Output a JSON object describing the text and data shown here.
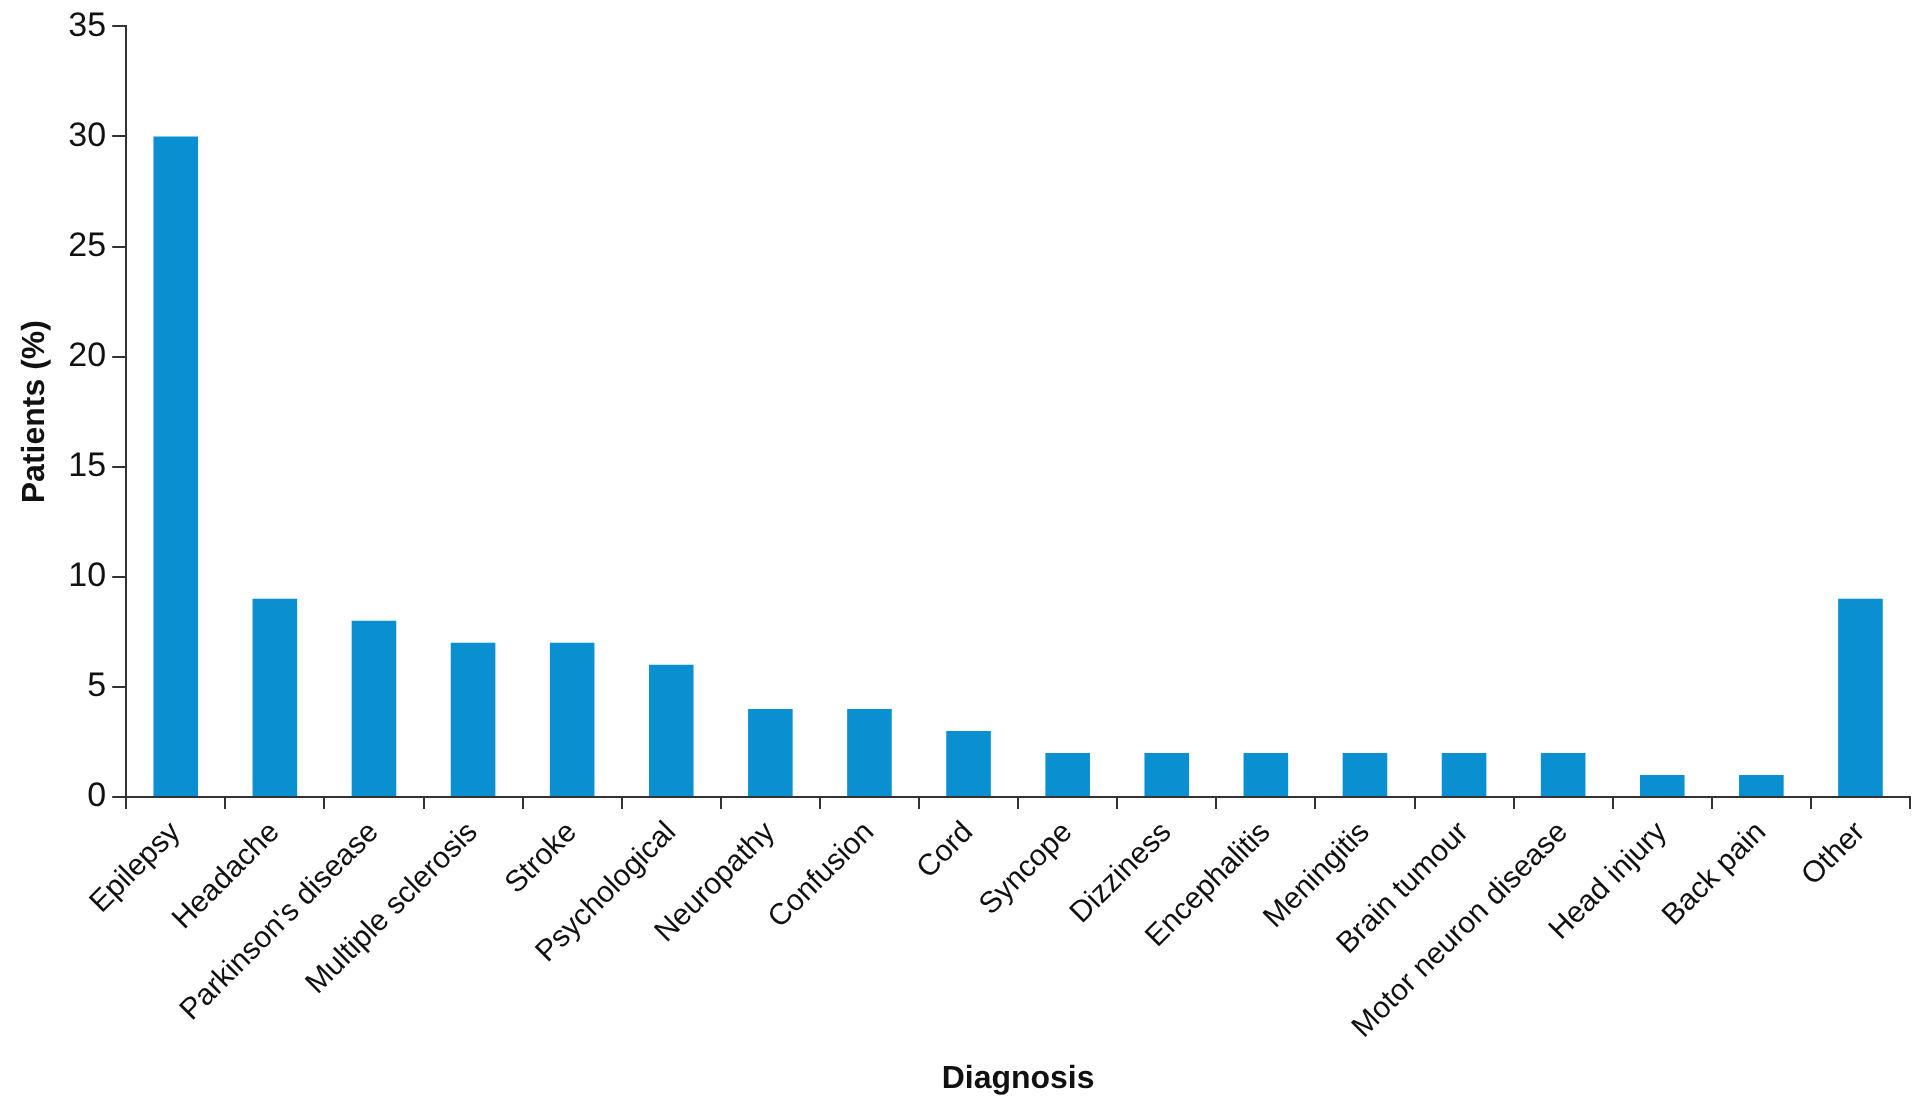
{
  "chart_data": {
    "type": "bar",
    "xlabel": "Diagnosis",
    "ylabel": "Patients (%)",
    "categories": [
      "Epilepsy",
      "Headache",
      "Parkinson's disease",
      "Multiple sclerosis",
      "Stroke",
      "Psychological",
      "Neuropathy",
      "Confusion",
      "Cord",
      "Syncope",
      "Dizziness",
      "Encephalitis",
      "Meningitis",
      "Brain tumour",
      "Motor neuron disease",
      "Head injury",
      "Back pain",
      "Other"
    ],
    "values": [
      30,
      9,
      8,
      7,
      7,
      6,
      4,
      4,
      3,
      2,
      2,
      2,
      2,
      2,
      2,
      1,
      1,
      9
    ],
    "color": "#0a8fd1",
    "ylim": [
      0,
      35
    ],
    "yticks": [
      0,
      5,
      10,
      15,
      20,
      25,
      30,
      35
    ],
    "grid": false,
    "legend": false
  }
}
